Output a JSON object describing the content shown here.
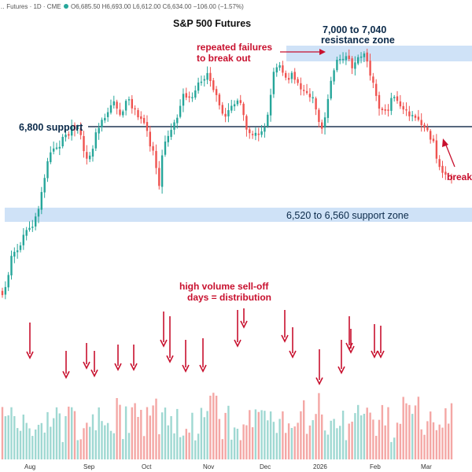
{
  "header": {
    "symbol_line": "… Futures · 1D · CME",
    "quote": "O6,685.50  H6,693.00  L6,612.00  C6,634.00  −106.00 (−1.57%)",
    "status_dot_color": "#26a69a"
  },
  "chart_data": {
    "type": "candlestick",
    "title": "S&P 500 Futures",
    "x_tick_labels": [
      "Aug",
      "Sep",
      "Oct",
      "Nov",
      "Dec",
      "2026",
      "Feb",
      "Mar"
    ],
    "ylim": [
      6240,
      7140
    ],
    "colors": {
      "up": "#26a69a",
      "down": "#ef5350",
      "vol_up": "#9fd8d2",
      "vol_down": "#f4a7a5",
      "zone": "#cfe2f7",
      "line": "#1f3552",
      "annotation": "#c8102e"
    },
    "support_line": {
      "label": "6,800 support",
      "value": 6800
    },
    "zones": [
      {
        "label_lines": [
          "7,000 to 7,040",
          "resistance zone"
        ],
        "from": 7000,
        "to": 7040
      },
      {
        "label": "6,520 to 6,560 support zone",
        "from": 6520,
        "to": 6560
      }
    ],
    "annotations": {
      "repeated_failures": [
        "repeated failures",
        "to break out"
      ],
      "high_volume": [
        "high volume sell-off",
        "days = distribution"
      ],
      "breakdown": "break"
    },
    "distribution_day_count": 20
  }
}
